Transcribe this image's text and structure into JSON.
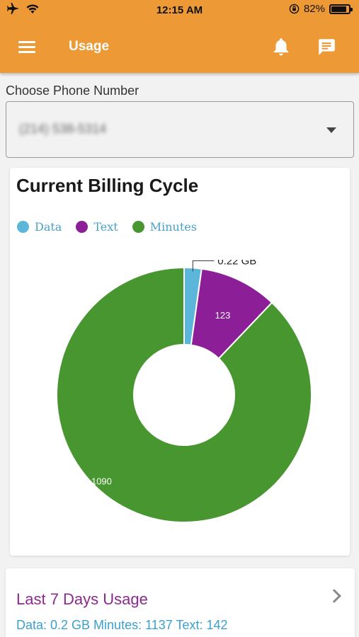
{
  "status_bar": {
    "time": "12:15 AM",
    "battery": "82%",
    "battery_level": 0.82,
    "icons": [
      "airplane-icon",
      "wifi-icon",
      "rotation-lock-icon",
      "battery-icon"
    ]
  },
  "toolbar": {
    "title": "Usage",
    "icons": [
      "menu-icon",
      "bell-icon",
      "chat-icon"
    ]
  },
  "phone": {
    "label": "Choose Phone Number",
    "value": "(214) 538-5314"
  },
  "billing": {
    "title": "Current Billing Cycle",
    "legend": [
      {
        "label": "Data",
        "color": "#5bb6d9"
      },
      {
        "label": "Text",
        "color": "#8c1e98"
      },
      {
        "label": "Minutes",
        "color": "#479630"
      }
    ],
    "callout_label": "0.22 GB"
  },
  "chart_data": {
    "type": "pie",
    "variant": "donut",
    "categories": [
      "Data",
      "Text",
      "Minutes"
    ],
    "values": [
      0.22,
      123,
      1090
    ],
    "display_values": [
      0.022,
      0.099,
      0.879
    ],
    "labels": [
      "0.22 GB",
      "123",
      "1090"
    ],
    "colors": [
      "#5bb6d9",
      "#8c1e98",
      "#479630"
    ],
    "title": "Current Billing Cycle",
    "legend": "top-left"
  },
  "weekly": {
    "title": "Last 7 Days Usage",
    "stats": "Data: 0.2 GB  Minutes: 1137  Text: 142"
  }
}
